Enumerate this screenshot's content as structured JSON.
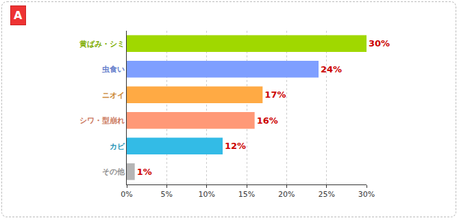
{
  "chart_data": {
    "type": "bar",
    "orientation": "horizontal",
    "annotations": [
      "A"
    ],
    "categories": [
      "黄ばみ・シミ",
      "虫食い",
      "ニオイ",
      "シワ・型崩れ",
      "カビ",
      "その他"
    ],
    "values": [
      30,
      24,
      17,
      16,
      12,
      1
    ],
    "value_labels": [
      "30%",
      "24%",
      "17%",
      "16%",
      "12%",
      "1%"
    ],
    "data_labels": true,
    "colors": [
      "#a0d800",
      "#7f9fff",
      "#ffaa44",
      "#ff9977",
      "#33bbe6",
      "#b5b5b5"
    ],
    "xlim": [
      0,
      30
    ],
    "xticks": [
      {
        "value": 0,
        "label": "0%"
      },
      {
        "value": 5,
        "label": "5%"
      },
      {
        "value": 10,
        "label": "10%"
      },
      {
        "value": 15,
        "label": "15%"
      },
      {
        "value": 20,
        "label": "20%"
      },
      {
        "value": 25,
        "label": "25%"
      },
      {
        "value": 30,
        "label": "30%"
      }
    ],
    "grid": true
  }
}
